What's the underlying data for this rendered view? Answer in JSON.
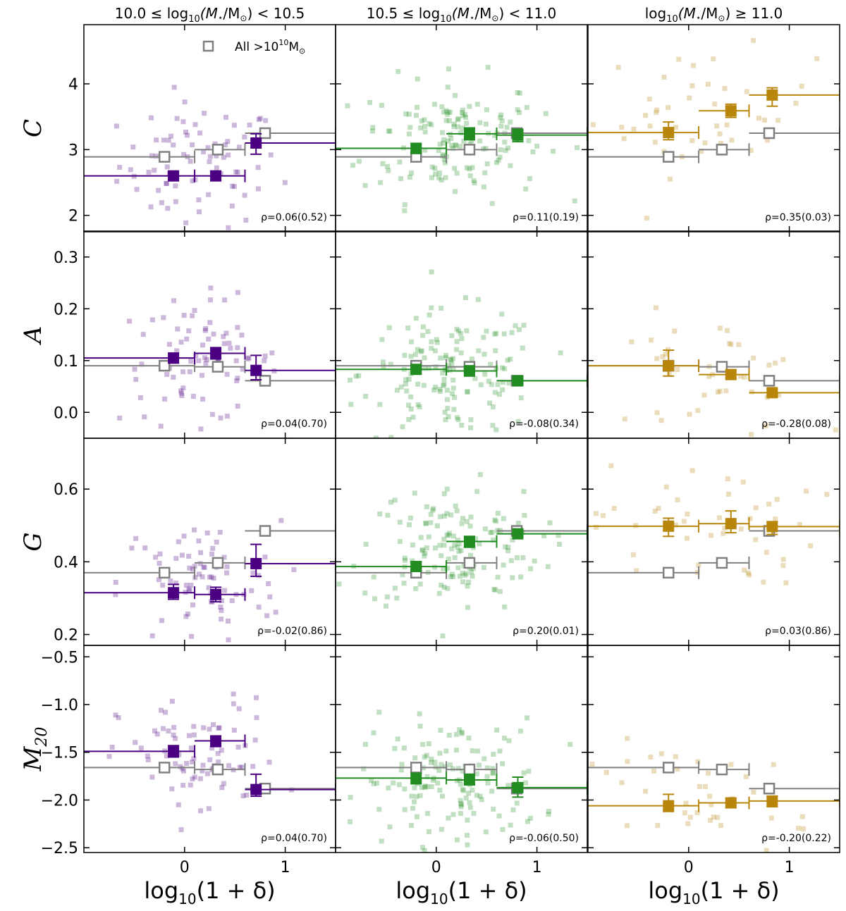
{
  "chart_data": {
    "type": "scatter",
    "columns": [
      {
        "title_pre": "10.0 ≤ log",
        "title_sub": "10",
        "title_mid": "(M",
        "title_star": "⋆",
        "title_post": "/M",
        "title_sun": "⊙",
        "title_end": ") < 10.5",
        "color": "#4b0082"
      },
      {
        "title_pre": "10.5 ≤ log",
        "title_sub": "10",
        "title_mid": "(M",
        "title_star": "⋆",
        "title_post": "/M",
        "title_sun": "⊙",
        "title_end": ") < 11.0",
        "color": "#228b22"
      },
      {
        "title_pre": "log",
        "title_sub": "10",
        "title_mid": "(M",
        "title_star": "⋆",
        "title_post": "/M",
        "title_sun": "⊙",
        "title_end": ") ≥ 11.0",
        "color": "#b8860b"
      }
    ],
    "xlabel": {
      "pre": "log",
      "sub": "10",
      "post": "(1 + δ)"
    },
    "xlim": [
      -1.0,
      1.5
    ],
    "xticks": [
      0,
      1
    ],
    "gray_color": "#808080",
    "legend": {
      "label_pre": "All  >10",
      "label_sup": "10",
      "label_post": "M",
      "label_sun": "⊙"
    },
    "rows": [
      {
        "ylabel": "C",
        "ylabel_sub": "",
        "ylim": [
          1.75,
          4.9
        ],
        "yticks": [
          2,
          3,
          4
        ],
        "gray": [
          {
            "x": -0.2,
            "y": 2.89,
            "xl": -1.0,
            "xr": 0.1
          },
          {
            "x": 0.33,
            "y": 3.0,
            "xl": 0.1,
            "xr": 0.6
          },
          {
            "x": 0.8,
            "y": 3.25,
            "xl": 0.6,
            "xr": 1.5
          }
        ],
        "panels": [
          {
            "rho": "ρ=0.06(0.52)",
            "bins": [
              {
                "x": -0.11,
                "y": 2.6,
                "xl": -1.0,
                "xr": 0.1,
                "ylo": 2.55,
                "yhi": 2.65
              },
              {
                "x": 0.31,
                "y": 2.6,
                "xl": 0.1,
                "xr": 0.6,
                "ylo": 2.53,
                "yhi": 2.67
              },
              {
                "x": 0.71,
                "y": 3.1,
                "xl": 0.6,
                "xr": 1.5,
                "ylo": 2.93,
                "yhi": 3.24
              }
            ]
          },
          {
            "rho": "ρ=0.11(0.19)",
            "bins": [
              {
                "x": -0.2,
                "y": 3.02,
                "xl": -1.0,
                "xr": 0.1,
                "ylo": 2.94,
                "yhi": 3.09
              },
              {
                "x": 0.33,
                "y": 3.24,
                "xl": 0.1,
                "xr": 0.6,
                "ylo": 3.15,
                "yhi": 3.33
              },
              {
                "x": 0.81,
                "y": 3.22,
                "xl": 0.6,
                "xr": 1.5,
                "ylo": 3.12,
                "yhi": 3.31
              }
            ]
          },
          {
            "rho": "ρ=0.35(0.03)",
            "bins": [
              {
                "x": -0.2,
                "y": 3.26,
                "xl": -1.0,
                "xr": 0.1,
                "ylo": 3.15,
                "yhi": 3.42
              },
              {
                "x": 0.42,
                "y": 3.59,
                "xl": 0.1,
                "xr": 0.6,
                "ylo": 3.49,
                "yhi": 3.69
              },
              {
                "x": 0.83,
                "y": 3.83,
                "xl": 0.6,
                "xr": 1.5,
                "ylo": 3.66,
                "yhi": 3.94
              }
            ]
          }
        ]
      },
      {
        "ylabel": "A",
        "ylabel_sub": "",
        "ylim": [
          -0.05,
          0.35
        ],
        "yticks": [
          0.0,
          0.1,
          0.2,
          0.3
        ],
        "gray": [
          {
            "x": -0.2,
            "y": 0.09,
            "xl": -1.0,
            "xr": 0.1
          },
          {
            "x": 0.33,
            "y": 0.088,
            "xl": 0.1,
            "xr": 0.6
          },
          {
            "x": 0.8,
            "y": 0.061,
            "xl": 0.6,
            "xr": 1.5
          }
        ],
        "panels": [
          {
            "rho": "ρ=0.04(0.70)",
            "bins": [
              {
                "x": -0.11,
                "y": 0.105,
                "xl": -1.0,
                "xr": 0.1,
                "ylo": 0.095,
                "yhi": 0.114
              },
              {
                "x": 0.31,
                "y": 0.114,
                "xl": 0.1,
                "xr": 0.6,
                "ylo": 0.103,
                "yhi": 0.125
              },
              {
                "x": 0.71,
                "y": 0.081,
                "xl": 0.6,
                "xr": 1.5,
                "ylo": 0.063,
                "yhi": 0.11
              }
            ]
          },
          {
            "rho": "ρ=-0.08(0.34)",
            "bins": [
              {
                "x": -0.2,
                "y": 0.083,
                "xl": -1.0,
                "xr": 0.1,
                "ylo": 0.075,
                "yhi": 0.091
              },
              {
                "x": 0.33,
                "y": 0.08,
                "xl": 0.1,
                "xr": 0.6,
                "ylo": 0.07,
                "yhi": 0.09
              },
              {
                "x": 0.81,
                "y": 0.061,
                "xl": 0.6,
                "xr": 1.5,
                "ylo": 0.054,
                "yhi": 0.069
              }
            ]
          },
          {
            "rho": "ρ=-0.28(0.08)",
            "bins": [
              {
                "x": -0.2,
                "y": 0.09,
                "xl": -1.0,
                "xr": 0.1,
                "ylo": 0.07,
                "yhi": 0.12
              },
              {
                "x": 0.42,
                "y": 0.073,
                "xl": 0.1,
                "xr": 0.6,
                "ylo": 0.065,
                "yhi": 0.082
              },
              {
                "x": 0.83,
                "y": 0.038,
                "xl": 0.6,
                "xr": 1.5,
                "ylo": 0.031,
                "yhi": 0.045
              }
            ]
          }
        ]
      },
      {
        "ylabel": "G",
        "ylabel_sub": "",
        "ylim": [
          0.17,
          0.74
        ],
        "yticks": [
          0.2,
          0.4,
          0.6
        ],
        "gray": [
          {
            "x": -0.2,
            "y": 0.37,
            "xl": -1.0,
            "xr": 0.1
          },
          {
            "x": 0.33,
            "y": 0.397,
            "xl": 0.1,
            "xr": 0.6
          },
          {
            "x": 0.8,
            "y": 0.485,
            "xl": 0.6,
            "xr": 1.5
          }
        ],
        "panels": [
          {
            "rho": "ρ=-0.02(0.86)",
            "bins": [
              {
                "x": -0.11,
                "y": 0.315,
                "xl": -1.0,
                "xr": 0.1,
                "ylo": 0.297,
                "yhi": 0.338
              },
              {
                "x": 0.31,
                "y": 0.31,
                "xl": 0.1,
                "xr": 0.6,
                "ylo": 0.29,
                "yhi": 0.33
              },
              {
                "x": 0.71,
                "y": 0.395,
                "xl": 0.6,
                "xr": 1.5,
                "ylo": 0.36,
                "yhi": 0.448
              }
            ]
          },
          {
            "rho": "ρ=0.20(0.01)",
            "bins": [
              {
                "x": -0.2,
                "y": 0.387,
                "xl": -1.0,
                "xr": 0.1,
                "ylo": 0.375,
                "yhi": 0.4
              },
              {
                "x": 0.33,
                "y": 0.456,
                "xl": 0.1,
                "xr": 0.6,
                "ylo": 0.44,
                "yhi": 0.47
              },
              {
                "x": 0.81,
                "y": 0.477,
                "xl": 0.6,
                "xr": 1.5,
                "ylo": 0.465,
                "yhi": 0.49
              }
            ]
          },
          {
            "rho": "ρ=0.03(0.86)",
            "bins": [
              {
                "x": -0.2,
                "y": 0.498,
                "xl": -1.0,
                "xr": 0.1,
                "ylo": 0.47,
                "yhi": 0.52
              },
              {
                "x": 0.42,
                "y": 0.505,
                "xl": 0.1,
                "xr": 0.6,
                "ylo": 0.48,
                "yhi": 0.54
              },
              {
                "x": 0.83,
                "y": 0.497,
                "xl": 0.6,
                "xr": 1.5,
                "ylo": 0.475,
                "yhi": 0.51
              }
            ]
          }
        ]
      },
      {
        "ylabel": "M",
        "ylabel_sub": "20",
        "ylim": [
          -2.55,
          -0.38
        ],
        "yticks": [
          -2.5,
          -2.0,
          -1.5,
          -1.0,
          -0.5
        ],
        "gray": [
          {
            "x": -0.2,
            "y": -1.66,
            "xl": -1.0,
            "xr": 0.1
          },
          {
            "x": 0.33,
            "y": -1.68,
            "xl": 0.1,
            "xr": 0.6
          },
          {
            "x": 0.8,
            "y": -1.88,
            "xl": 0.6,
            "xr": 1.5
          }
        ],
        "panels": [
          {
            "rho": "ρ=0.04(0.70)",
            "bins": [
              {
                "x": -0.11,
                "y": -1.49,
                "xl": -1.0,
                "xr": 0.1,
                "ylo": -1.55,
                "yhi": -1.43
              },
              {
                "x": 0.31,
                "y": -1.38,
                "xl": 0.1,
                "xr": 0.6,
                "ylo": -1.44,
                "yhi": -1.33
              },
              {
                "x": 0.71,
                "y": -1.89,
                "xl": 0.6,
                "xr": 1.5,
                "ylo": -1.96,
                "yhi": -1.73
              }
            ]
          },
          {
            "rho": "ρ=-0.06(0.50)",
            "bins": [
              {
                "x": -0.2,
                "y": -1.77,
                "xl": -1.0,
                "xr": 0.1,
                "ylo": -1.83,
                "yhi": -1.72
              },
              {
                "x": 0.33,
                "y": -1.79,
                "xl": 0.1,
                "xr": 0.6,
                "ylo": -1.84,
                "yhi": -1.73
              },
              {
                "x": 0.81,
                "y": -1.87,
                "xl": 0.6,
                "xr": 1.5,
                "ylo": -1.97,
                "yhi": -1.76
              }
            ]
          },
          {
            "rho": "ρ=-0.20(0.22)",
            "bins": [
              {
                "x": -0.2,
                "y": -2.06,
                "xl": -1.0,
                "xr": 0.1,
                "ylo": -2.12,
                "yhi": -1.94
              },
              {
                "x": 0.42,
                "y": -2.03,
                "xl": 0.1,
                "xr": 0.6,
                "ylo": -2.08,
                "yhi": -1.98
              },
              {
                "x": 0.83,
                "y": -2.01,
                "xl": 0.6,
                "xr": 1.5,
                "ylo": -2.07,
                "yhi": -1.96
              }
            ]
          }
        ]
      }
    ],
    "scatter_counts": [
      [
        80,
        150,
        45
      ],
      [
        80,
        150,
        45
      ],
      [
        80,
        150,
        45
      ],
      [
        80,
        150,
        45
      ]
    ],
    "scatter_spread_x": [
      [
        0.4,
        0.45,
        0.55
      ],
      [
        0.4,
        0.45,
        0.55
      ],
      [
        0.4,
        0.45,
        0.55
      ],
      [
        0.4,
        0.45,
        0.55
      ]
    ]
  }
}
